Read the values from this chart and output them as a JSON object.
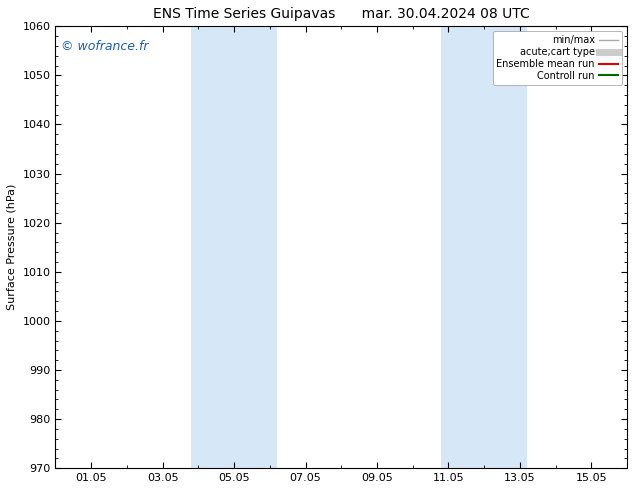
{
  "title_left": "ENS Time Series Guipavas",
  "title_right": "mar. 30.04.2024 08 UTC",
  "ylabel": "Surface Pressure (hPa)",
  "ylim": [
    970,
    1060
  ],
  "yticks": [
    970,
    980,
    990,
    1000,
    1010,
    1020,
    1030,
    1040,
    1050,
    1060
  ],
  "xtick_labels": [
    "01.05",
    "03.05",
    "05.05",
    "07.05",
    "09.05",
    "11.05",
    "13.05",
    "15.05"
  ],
  "xtick_positions": [
    1,
    3,
    5,
    7,
    9,
    11,
    13,
    15
  ],
  "xmin": 0,
  "xmax": 16,
  "watermark": "© wofrance.fr",
  "background_color": "#ffffff",
  "plot_bg_color": "#ffffff",
  "shaded_regions": [
    {
      "xstart": 3.8,
      "xend": 6.2,
      "color": "#d6e8f7"
    },
    {
      "xstart": 10.8,
      "xend": 13.2,
      "color": "#d6e8f7"
    }
  ],
  "legend_entries": [
    {
      "label": "min/max",
      "color": "#aaaaaa",
      "lw": 1.0,
      "style": "line"
    },
    {
      "label": "acute;cart type",
      "color": "#cccccc",
      "lw": 5,
      "style": "line"
    },
    {
      "label": "Ensemble mean run",
      "color": "#dd0000",
      "lw": 1.5,
      "style": "line"
    },
    {
      "label": "Controll run",
      "color": "#006600",
      "lw": 1.5,
      "style": "line"
    }
  ],
  "title_fontsize": 10,
  "axis_fontsize": 8,
  "tick_fontsize": 8,
  "watermark_color": "#1a5eb8",
  "watermark_fontsize": 9
}
